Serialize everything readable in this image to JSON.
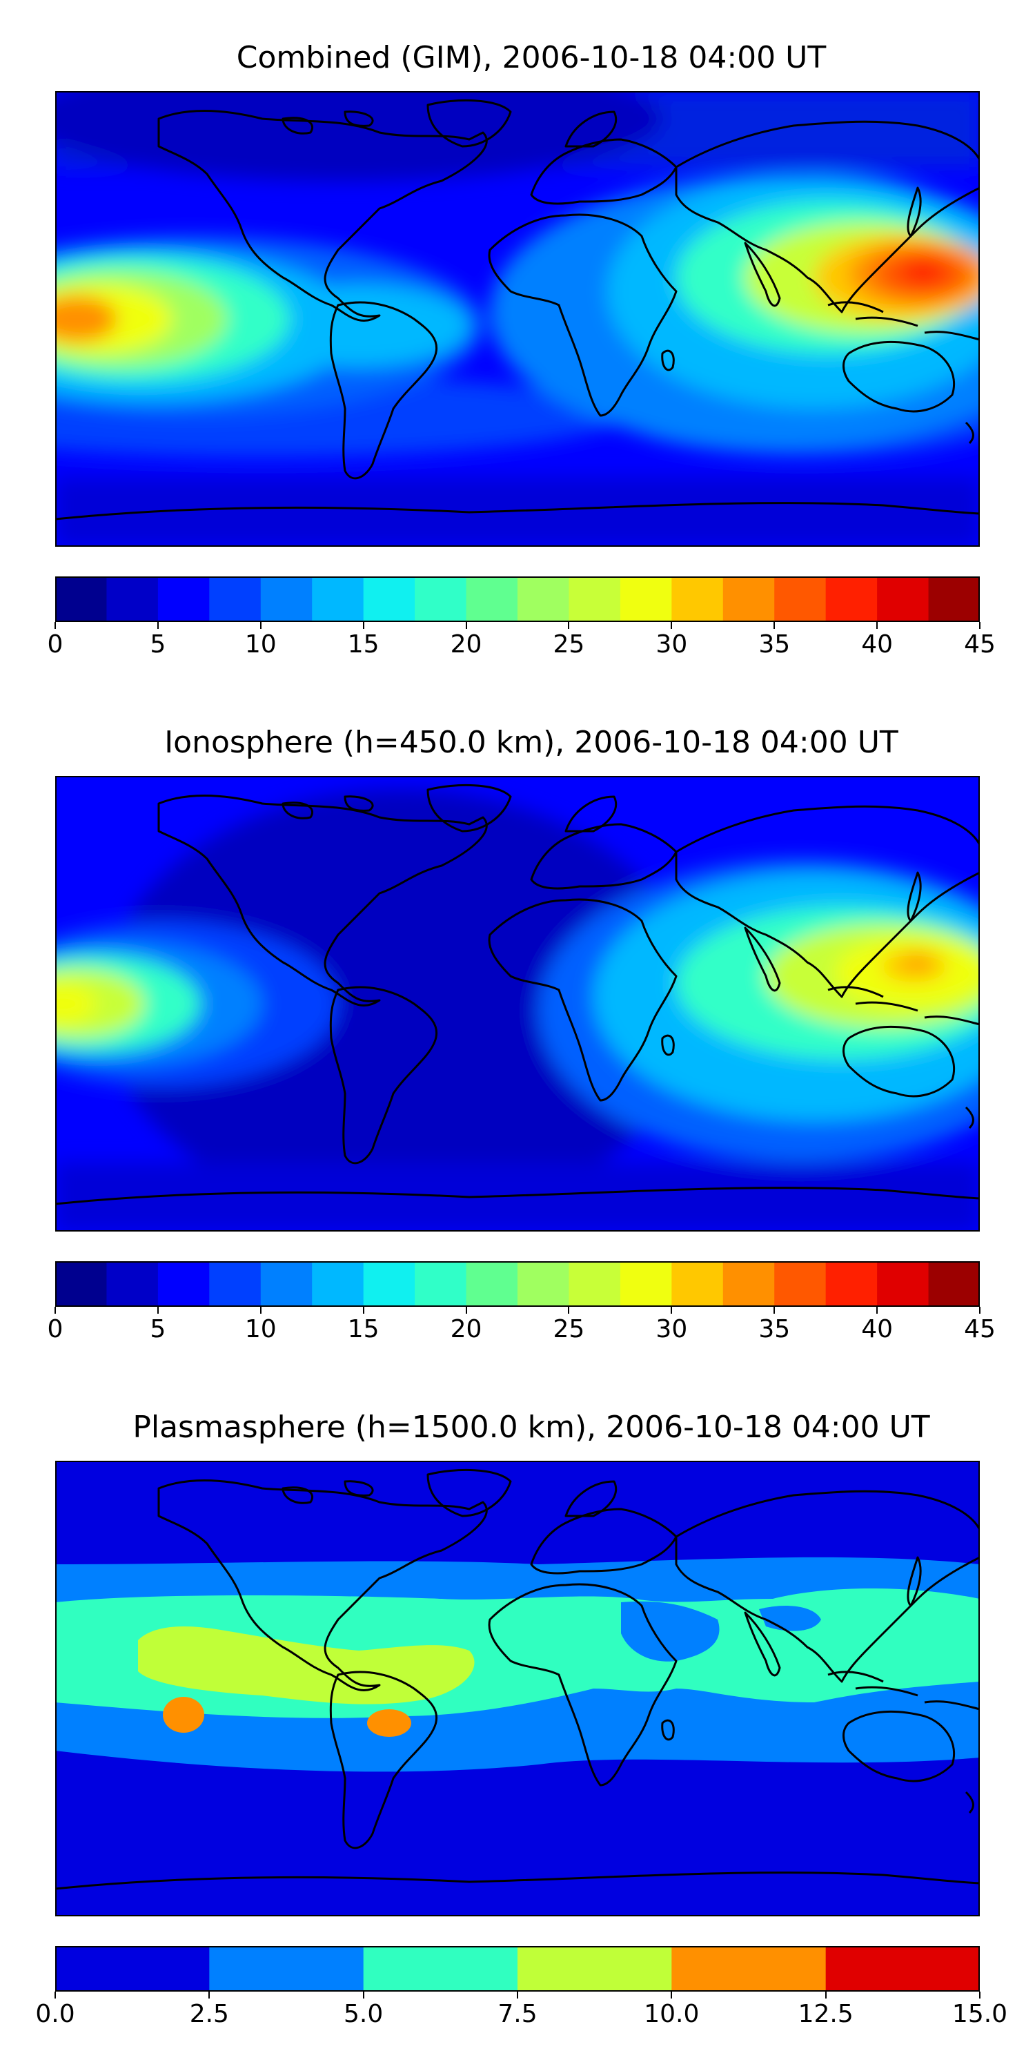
{
  "panels": [
    {
      "title": "Combined (GIM), 2006-10-18 04:00 UT",
      "colorbar": {
        "ticks": [
          "0",
          "5",
          "10",
          "15",
          "20",
          "25",
          "30",
          "35",
          "40",
          "45"
        ],
        "colors": [
          "#00008f",
          "#0000c8",
          "#0000ff",
          "#0040ff",
          "#0080ff",
          "#00b8ff",
          "#10f0f0",
          "#30ffc8",
          "#60ff90",
          "#a0ff60",
          "#c8ff38",
          "#f0ff10",
          "#ffc800",
          "#ff9000",
          "#ff5800",
          "#ff2000",
          "#e00000",
          "#9c0000"
        ]
      }
    },
    {
      "title": "Ionosphere  (h=450.0 km), 2006-10-18 04:00 UT",
      "colorbar": {
        "ticks": [
          "0",
          "5",
          "10",
          "15",
          "20",
          "25",
          "30",
          "35",
          "40",
          "45"
        ],
        "colors": [
          "#00008f",
          "#0000c8",
          "#0000ff",
          "#0040ff",
          "#0080ff",
          "#00b8ff",
          "#10f0f0",
          "#30ffc8",
          "#60ff90",
          "#a0ff60",
          "#c8ff38",
          "#f0ff10",
          "#ffc800",
          "#ff9000",
          "#ff5800",
          "#ff2000",
          "#e00000",
          "#9c0000"
        ]
      }
    },
    {
      "title": "Plasmasphere (h=1500.0 km), 2006-10-18 04:00 UT",
      "colorbar": {
        "ticks": [
          "0.0",
          "2.5",
          "5.0",
          "7.5",
          "10.0",
          "12.5",
          "15.0"
        ],
        "colors": [
          "#0000e0",
          "#0080ff",
          "#30ffc0",
          "#c0ff38",
          "#ff9000",
          "#e00000"
        ]
      }
    }
  ]
}
